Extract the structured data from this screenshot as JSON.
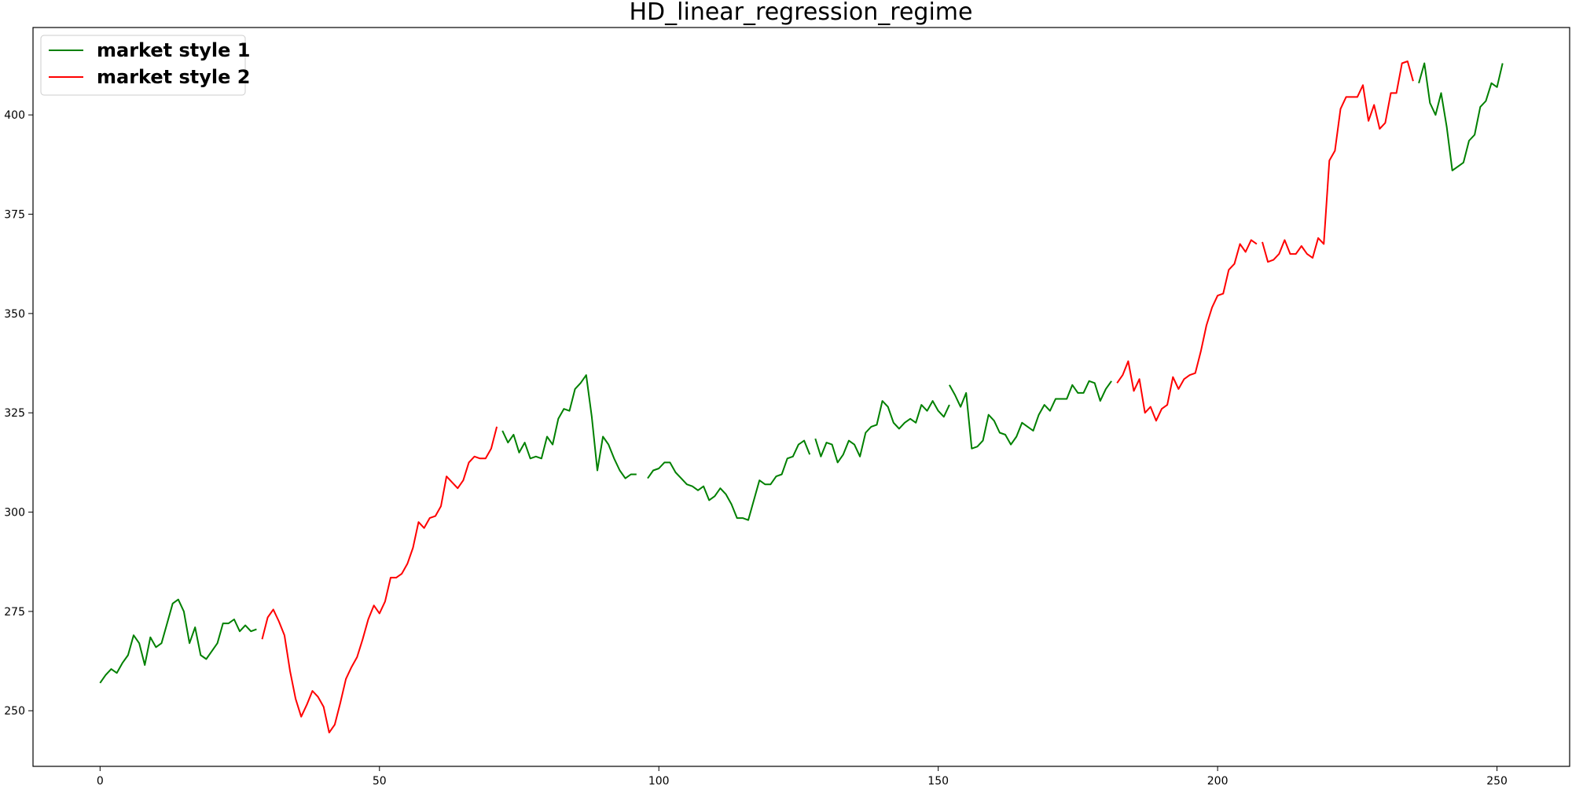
{
  "chart_data": {
    "type": "line",
    "title": "HD_linear_regression_regime",
    "xlabel": "",
    "ylabel": "",
    "xlim": [
      -12,
      263
    ],
    "ylim": [
      236,
      422
    ],
    "x_ticks": [
      0,
      50,
      100,
      150,
      200,
      250
    ],
    "y_ticks": [
      250,
      275,
      300,
      325,
      350,
      375,
      400
    ],
    "grid": false,
    "legend_position": "top-left",
    "colors": {
      "market_style_1": "#008000",
      "market_style_2": "#ff0000"
    },
    "series": [
      {
        "name": "market style 1",
        "color": "#008000",
        "segments": [
          [
            [
              0,
              257
            ],
            [
              1,
              259
            ],
            [
              2,
              260.5
            ],
            [
              3,
              259.5
            ],
            [
              4,
              262
            ],
            [
              5,
              264
            ],
            [
              6,
              269
            ],
            [
              7,
              267
            ],
            [
              8,
              261.5
            ],
            [
              9,
              268.5
            ],
            [
              10,
              266
            ],
            [
              11,
              267
            ],
            [
              12,
              272
            ],
            [
              13,
              277
            ],
            [
              14,
              278
            ],
            [
              15,
              275
            ],
            [
              16,
              267
            ],
            [
              17,
              271
            ],
            [
              18,
              264
            ],
            [
              19,
              263
            ],
            [
              20,
              265
            ],
            [
              21,
              267
            ],
            [
              22,
              272
            ],
            [
              23,
              272
            ],
            [
              24,
              273
            ],
            [
              25,
              270
            ],
            [
              26,
              271.5
            ],
            [
              27,
              270
            ],
            [
              28,
              270.5
            ]
          ],
          [
            [
              72,
              320.5
            ],
            [
              73,
              317.5
            ],
            [
              74,
              319.5
            ],
            [
              75,
              315
            ],
            [
              76,
              317.5
            ],
            [
              77,
              313.5
            ],
            [
              78,
              314
            ],
            [
              79,
              313.5
            ],
            [
              80,
              319
            ],
            [
              81,
              317
            ],
            [
              82,
              323.5
            ],
            [
              83,
              326
            ],
            [
              84,
              325.5
            ],
            [
              85,
              331
            ],
            [
              86,
              332.5
            ],
            [
              87,
              334.5
            ],
            [
              88,
              324
            ],
            [
              89,
              310.5
            ],
            [
              90,
              319
            ],
            [
              91,
              317
            ],
            [
              92,
              313.5
            ],
            [
              93,
              310.5
            ],
            [
              94,
              308.5
            ],
            [
              95,
              309.5
            ],
            [
              96,
              309.5
            ]
          ],
          [
            [
              98,
              308.5
            ],
            [
              99,
              310.5
            ],
            [
              100,
              311
            ],
            [
              101,
              312.5
            ],
            [
              102,
              312.5
            ],
            [
              103,
              310
            ],
            [
              104,
              308.5
            ],
            [
              105,
              307
            ],
            [
              106,
              306.5
            ],
            [
              107,
              305.5
            ],
            [
              108,
              306.5
            ],
            [
              109,
              303
            ],
            [
              110,
              304
            ],
            [
              111,
              306
            ],
            [
              112,
              304.5
            ],
            [
              113,
              302
            ],
            [
              114,
              298.5
            ],
            [
              115,
              298.5
            ],
            [
              116,
              298
            ],
            [
              117,
              303
            ],
            [
              118,
              308
            ],
            [
              119,
              307
            ],
            [
              120,
              307
            ],
            [
              121,
              309
            ],
            [
              122,
              309.5
            ],
            [
              123,
              313.5
            ],
            [
              124,
              314
            ],
            [
              125,
              317
            ],
            [
              126,
              318
            ],
            [
              127,
              314.5
            ]
          ],
          [
            [
              128,
              318.5
            ],
            [
              129,
              314
            ],
            [
              130,
              317.5
            ],
            [
              131,
              317
            ],
            [
              132,
              312.5
            ],
            [
              133,
              314.5
            ],
            [
              134,
              318
            ],
            [
              135,
              317
            ],
            [
              136,
              314
            ],
            [
              137,
              320
            ],
            [
              138,
              321.5
            ],
            [
              139,
              322
            ],
            [
              140,
              328
            ],
            [
              141,
              326.5
            ],
            [
              142,
              322.5
            ],
            [
              143,
              321
            ],
            [
              144,
              322.5
            ],
            [
              145,
              323.5
            ],
            [
              146,
              322.5
            ],
            [
              147,
              327
            ],
            [
              148,
              325.5
            ],
            [
              149,
              328
            ],
            [
              150,
              325.5
            ],
            [
              151,
              324
            ],
            [
              152,
              327
            ]
          ],
          [
            [
              152,
              332
            ],
            [
              153,
              329.5
            ],
            [
              154,
              326.5
            ],
            [
              155,
              330
            ],
            [
              156,
              316
            ],
            [
              157,
              316.5
            ],
            [
              158,
              318
            ],
            [
              159,
              324.5
            ],
            [
              160,
              323
            ],
            [
              161,
              320
            ],
            [
              162,
              319.5
            ],
            [
              163,
              317
            ],
            [
              164,
              319
            ],
            [
              165,
              322.5
            ],
            [
              166,
              321.5
            ],
            [
              167,
              320.5
            ],
            [
              168,
              324.5
            ],
            [
              169,
              327
            ],
            [
              170,
              325.5
            ],
            [
              171,
              328.5
            ],
            [
              172,
              328.5
            ],
            [
              173,
              328.5
            ],
            [
              174,
              332
            ],
            [
              175,
              330
            ],
            [
              176,
              330
            ],
            [
              177,
              333
            ],
            [
              178,
              332.5
            ],
            [
              179,
              328
            ],
            [
              180,
              331
            ],
            [
              181,
              333
            ]
          ],
          [
            [
              236,
              408
            ],
            [
              237,
              413
            ],
            [
              238,
              403
            ],
            [
              239,
              400
            ],
            [
              240,
              405.5
            ],
            [
              241,
              397
            ],
            [
              242,
              386
            ],
            [
              243,
              387
            ],
            [
              244,
              388
            ],
            [
              245,
              393.5
            ],
            [
              246,
              395
            ],
            [
              247,
              402
            ],
            [
              248,
              403.5
            ],
            [
              249,
              408
            ],
            [
              250,
              407
            ],
            [
              251,
              413
            ]
          ]
        ]
      },
      {
        "name": "market style 2",
        "color": "#ff0000",
        "segments": [
          [
            [
              29,
              268
            ],
            [
              30,
              273.5
            ],
            [
              31,
              275.5
            ],
            [
              32,
              272.5
            ],
            [
              33,
              269
            ],
            [
              34,
              260
            ],
            [
              35,
              253
            ],
            [
              36,
              248.5
            ],
            [
              37,
              251.5
            ],
            [
              38,
              255
            ],
            [
              39,
              253.5
            ],
            [
              40,
              251
            ],
            [
              41,
              244.5
            ],
            [
              42,
              246.5
            ],
            [
              43,
              252
            ],
            [
              44,
              258
            ],
            [
              45,
              261
            ],
            [
              46,
              263.5
            ],
            [
              47,
              268
            ],
            [
              48,
              273
            ],
            [
              49,
              276.5
            ],
            [
              50,
              274.5
            ],
            [
              51,
              277.5
            ],
            [
              52,
              283.5
            ],
            [
              53,
              283.5
            ],
            [
              54,
              284.5
            ],
            [
              55,
              287
            ],
            [
              56,
              291
            ],
            [
              57,
              297.5
            ],
            [
              58,
              296
            ],
            [
              59,
              298.5
            ],
            [
              60,
              299
            ],
            [
              61,
              301.5
            ],
            [
              62,
              309
            ],
            [
              63,
              307.5
            ],
            [
              64,
              306
            ],
            [
              65,
              308
            ],
            [
              66,
              312.5
            ],
            [
              67,
              314
            ],
            [
              68,
              313.5
            ],
            [
              69,
              313.5
            ],
            [
              70,
              316
            ],
            [
              71,
              321.5
            ]
          ],
          [
            [
              182,
              332.5
            ],
            [
              183,
              334.5
            ],
            [
              184,
              338
            ],
            [
              185,
              330.5
            ],
            [
              186,
              333.5
            ],
            [
              187,
              325
            ],
            [
              188,
              326.5
            ],
            [
              189,
              323
            ],
            [
              190,
              326
            ],
            [
              191,
              327
            ],
            [
              192,
              334
            ],
            [
              193,
              331
            ],
            [
              194,
              333.5
            ],
            [
              195,
              334.5
            ],
            [
              196,
              335
            ],
            [
              197,
              340.5
            ],
            [
              198,
              347
            ],
            [
              199,
              351.5
            ],
            [
              200,
              354.5
            ],
            [
              201,
              355
            ],
            [
              202,
              361
            ],
            [
              203,
              362.5
            ],
            [
              204,
              367.5
            ],
            [
              205,
              365.5
            ],
            [
              206,
              368.5
            ],
            [
              207,
              367.5
            ]
          ],
          [
            [
              208,
              368
            ],
            [
              209,
              363
            ],
            [
              210,
              363.5
            ],
            [
              211,
              365
            ],
            [
              212,
              368.5
            ],
            [
              213,
              365
            ],
            [
              214,
              365
            ],
            [
              215,
              367
            ],
            [
              216,
              365
            ],
            [
              217,
              364
            ],
            [
              218,
              369
            ],
            [
              219,
              367.5
            ],
            [
              220,
              388.5
            ],
            [
              221,
              391
            ],
            [
              222,
              401.5
            ],
            [
              223,
              404.5
            ],
            [
              224,
              404.5
            ],
            [
              225,
              404.5
            ],
            [
              226,
              407.5
            ],
            [
              227,
              398.5
            ],
            [
              228,
              402.5
            ],
            [
              229,
              396.5
            ],
            [
              230,
              398
            ],
            [
              231,
              405.5
            ],
            [
              232,
              405.5
            ],
            [
              233,
              413
            ],
            [
              234,
              413.5
            ],
            [
              235,
              408.5
            ]
          ]
        ]
      }
    ]
  }
}
